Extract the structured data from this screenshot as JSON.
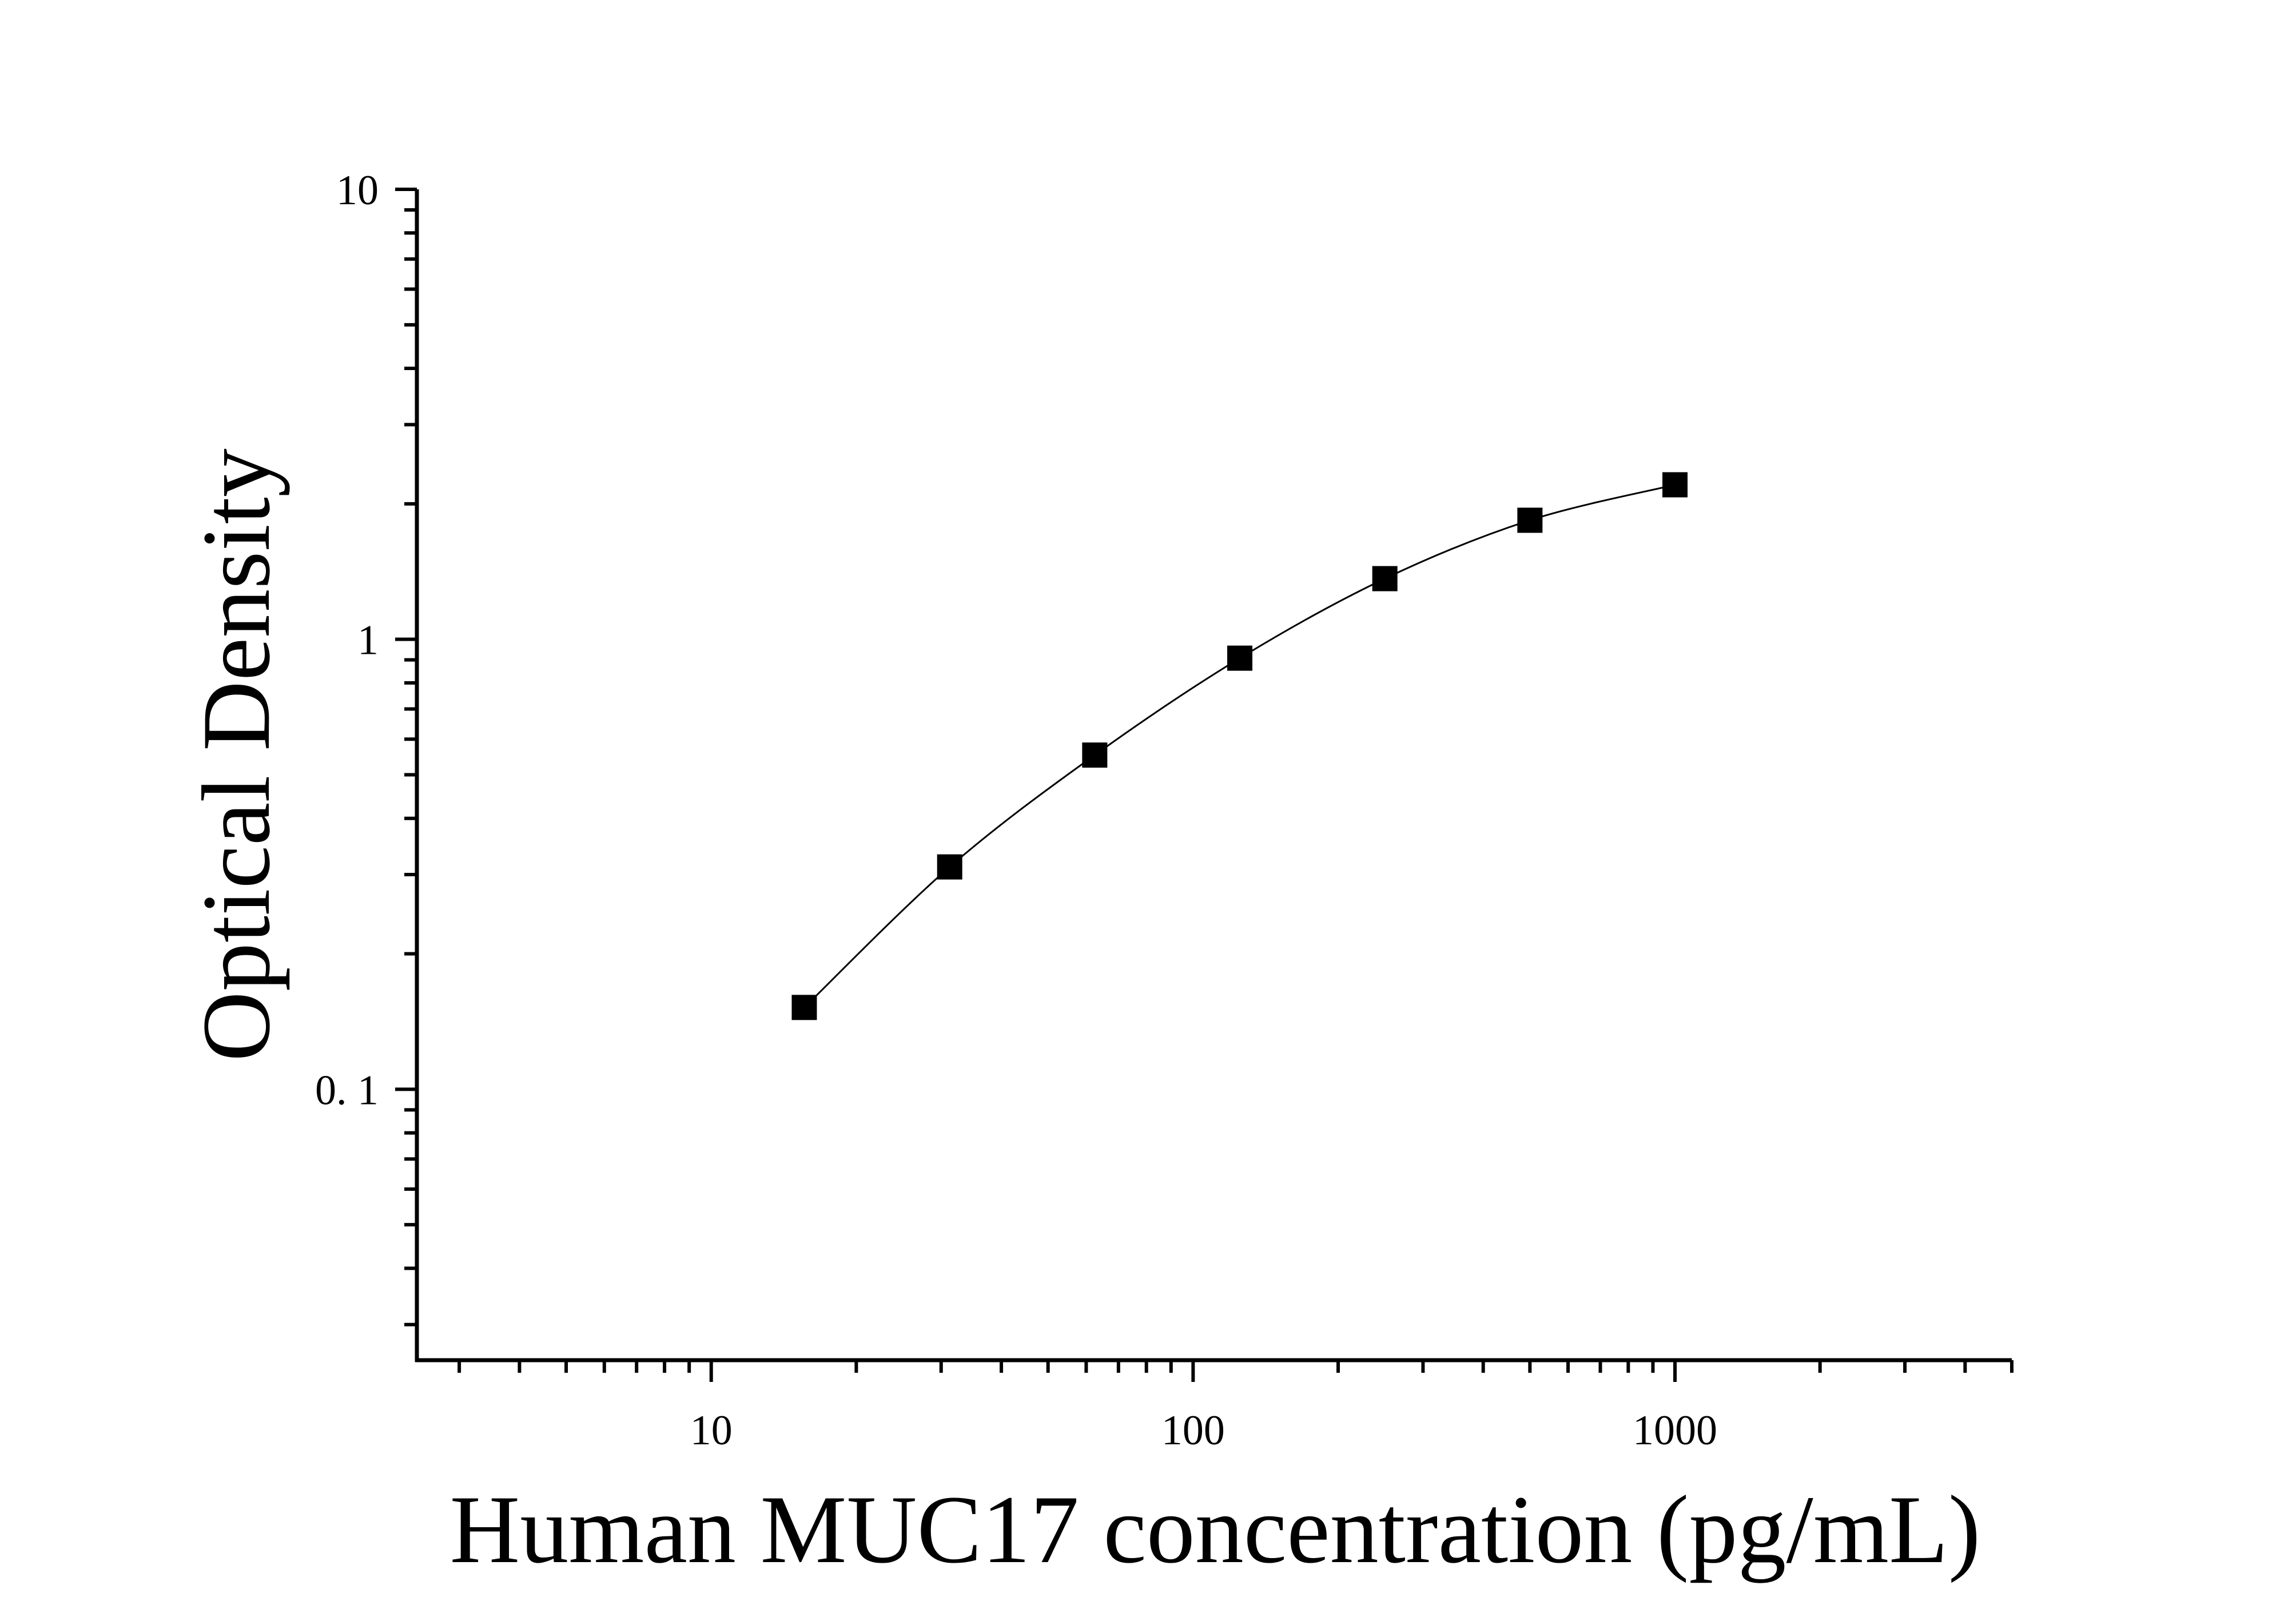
{
  "chart_data": {
    "type": "scatter",
    "title": "",
    "xlabel": "Human MUC17 concentration (pg/mL)",
    "ylabel": "Optical Density",
    "x_scale": "log",
    "y_scale": "log",
    "xlim": [
      2.45,
      5000
    ],
    "ylim": [
      0.025,
      10
    ],
    "x_ticks": [
      10,
      100,
      1000
    ],
    "x_tick_labels": [
      "10",
      "100",
      "1000"
    ],
    "y_ticks": [
      0.1,
      1,
      10
    ],
    "y_tick_labels": [
      "0. 1",
      "1",
      "10"
    ],
    "grid": false,
    "legend": "none",
    "marker": "square",
    "fit_curve": true,
    "series": [
      {
        "x": [
          15.6,
          31.25,
          62.5,
          125,
          250,
          500,
          1000
        ],
        "y": [
          0.152,
          0.312,
          0.553,
          0.908,
          1.364,
          1.839,
          2.205
        ]
      }
    ],
    "colors": {
      "marker": "#000000",
      "curve": "#000000",
      "axis": "#000000"
    }
  }
}
